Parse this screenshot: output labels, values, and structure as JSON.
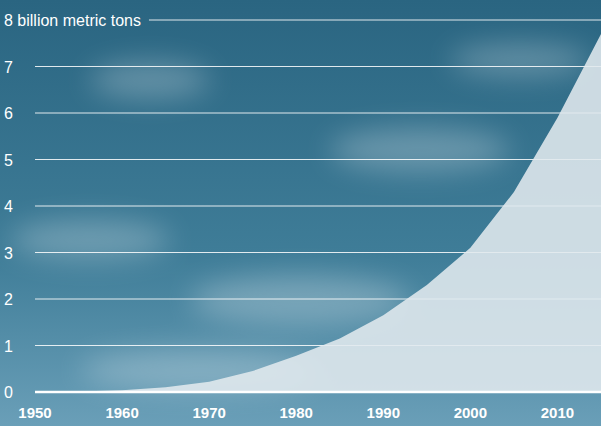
{
  "chart_data": {
    "type": "area",
    "x": [
      1950,
      1955,
      1960,
      1965,
      1970,
      1975,
      1980,
      1985,
      1990,
      1995,
      2000,
      2005,
      2010,
      2015
    ],
    "values": [
      0,
      0.01,
      0.04,
      0.1,
      0.22,
      0.45,
      0.78,
      1.15,
      1.65,
      2.3,
      3.1,
      4.3,
      5.9,
      7.7
    ],
    "color": "#e1e9ee",
    "xlim": [
      1950,
      2015
    ],
    "xticks": [
      1950,
      1960,
      1970,
      1980,
      1990,
      2000,
      2010
    ],
    "ylim": [
      0,
      8
    ],
    "yticks": [
      0,
      1,
      2,
      3,
      4,
      5,
      6,
      7,
      {
        "value": 8,
        "label": "8 billion metric tons"
      }
    ],
    "grid": true
  }
}
